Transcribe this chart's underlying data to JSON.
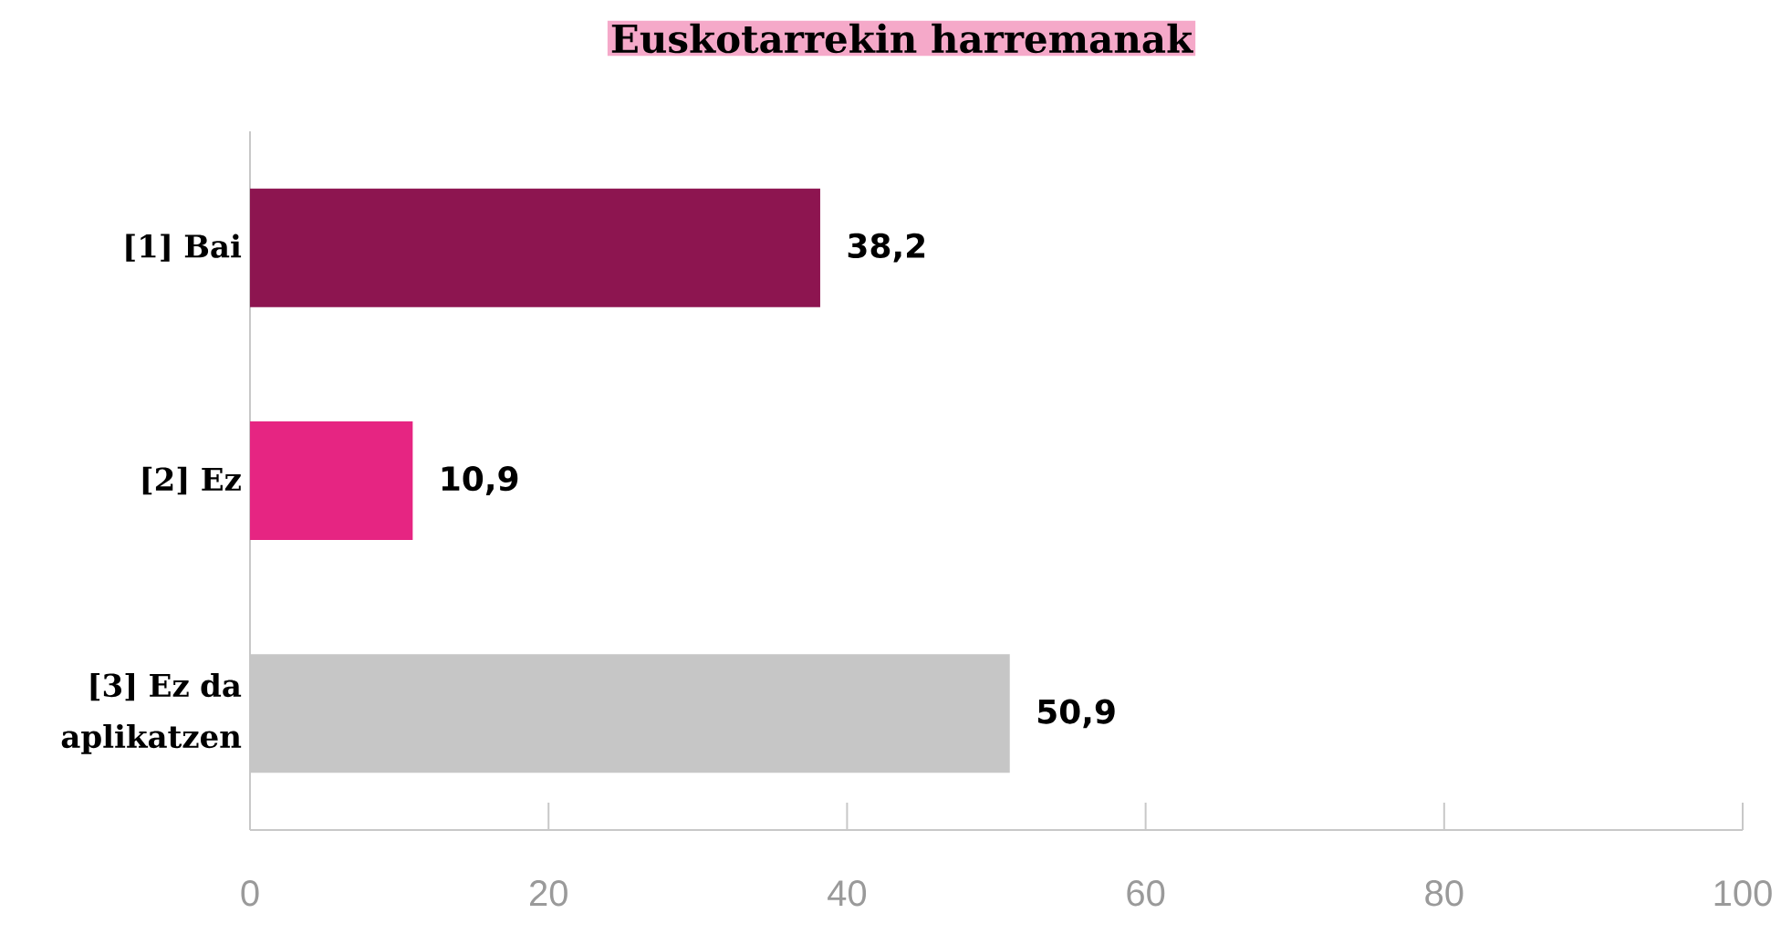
{
  "chart_data": {
    "type": "bar",
    "orientation": "horizontal",
    "title": "Euskotarrekin harremanak",
    "categories": [
      "[1] Bai",
      "[2] Ez",
      "[3] Ez da aplikatzen"
    ],
    "values": [
      38.2,
      10.9,
      50.9
    ],
    "colors": [
      "#8d1550",
      "#e62582",
      "#c6c6c6"
    ],
    "value_labels": [
      "38,2",
      "10,9",
      "50,9"
    ],
    "xlim": [
      0,
      100
    ],
    "xticks": [
      0,
      20,
      40,
      60,
      80,
      100
    ]
  }
}
